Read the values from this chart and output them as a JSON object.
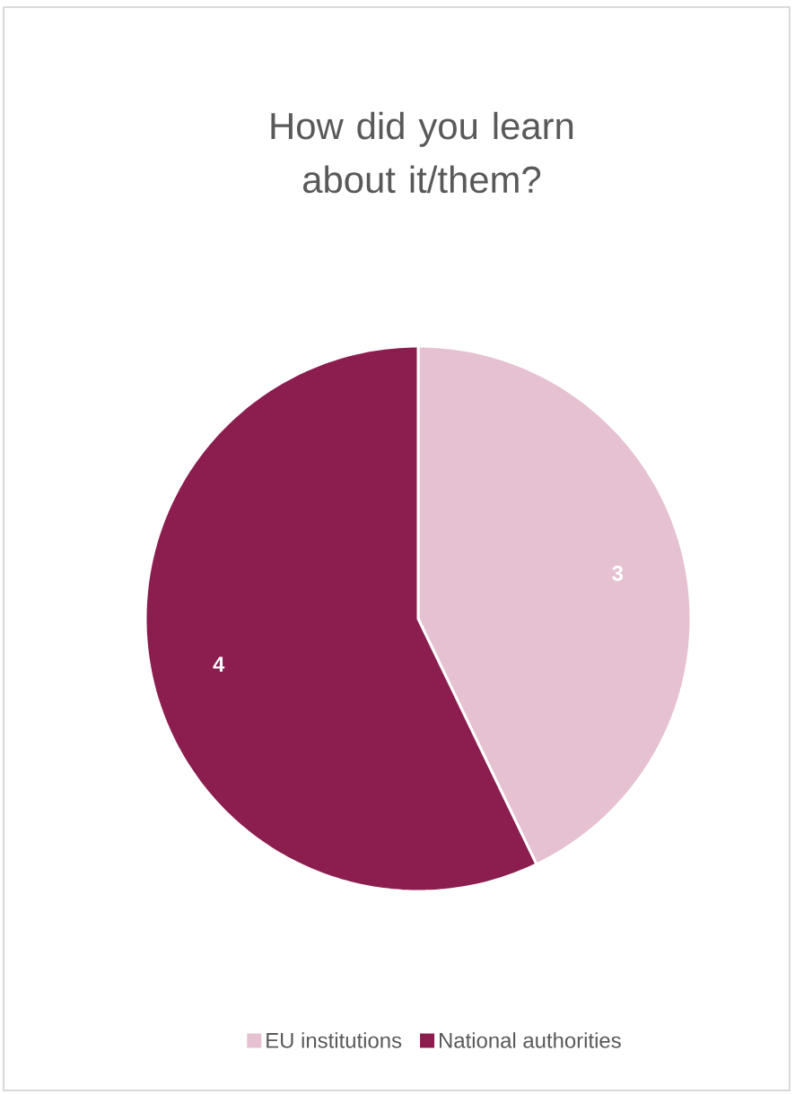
{
  "chart_data": {
    "type": "pie",
    "title": "How did you learn about it/them?",
    "categories": [
      "EU institutions",
      "National authorities"
    ],
    "values": [
      3,
      4
    ],
    "colors": [
      "#e6c1d1",
      "#8b1e4f"
    ],
    "data_labels": true,
    "legend": "bottom"
  }
}
